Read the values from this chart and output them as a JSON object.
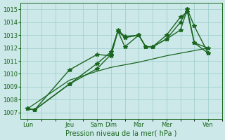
{
  "background_color": "#cce8e8",
  "grid_color": "#99cccc",
  "line_color": "#1a6620",
  "xlabel": "Pression niveau de la mer( hPa )",
  "ylim": [
    1006.5,
    1015.5
  ],
  "yticks": [
    1007,
    1008,
    1009,
    1010,
    1011,
    1012,
    1013,
    1014,
    1015
  ],
  "x_tick_labels": [
    "Lun",
    "Jeu",
    "Sam",
    "Dim",
    "Mar",
    "Mer",
    "Ven"
  ],
  "x_tick_positions": [
    0,
    3,
    5,
    6,
    8,
    10,
    13
  ],
  "xlim": [
    -0.5,
    14.0
  ],
  "lines": [
    {
      "x": [
        0,
        0.5,
        3,
        5,
        6,
        6.5,
        7,
        8,
        8.5,
        9,
        10,
        11,
        11.5,
        12,
        13
      ],
      "y": [
        1007.3,
        1007.2,
        1009.2,
        1010.4,
        1011.5,
        1013.4,
        1012.9,
        1013.0,
        1012.1,
        1012.1,
        1012.7,
        1014.0,
        1015.0,
        1013.7,
        1011.6
      ],
      "marker": "*",
      "markersize": 4,
      "linewidth": 1.0
    },
    {
      "x": [
        0,
        0.5,
        3,
        5,
        6,
        6.5,
        7,
        8,
        8.5,
        9,
        10,
        11,
        11.5,
        12,
        13
      ],
      "y": [
        1007.3,
        1007.2,
        1010.3,
        1011.5,
        1011.4,
        1013.3,
        1012.8,
        1013.0,
        1012.1,
        1012.1,
        1013.0,
        1014.4,
        1014.8,
        1012.4,
        1012.0
      ],
      "marker": "*",
      "markersize": 4,
      "linewidth": 1.0
    },
    {
      "x": [
        0,
        0.5,
        3,
        5,
        6,
        6.5,
        7,
        8,
        8.5,
        9,
        10,
        11,
        11.5,
        12,
        13
      ],
      "y": [
        1007.3,
        1007.2,
        1009.2,
        1010.8,
        1011.7,
        1013.3,
        1012.1,
        1013.0,
        1012.1,
        1012.1,
        1012.7,
        1013.4,
        1015.0,
        1012.4,
        1011.6
      ],
      "marker": "*",
      "markersize": 4,
      "linewidth": 1.0
    },
    {
      "x": [
        0,
        3,
        5,
        6,
        8,
        10,
        13
      ],
      "y": [
        1007.3,
        1009.5,
        1010.2,
        1010.5,
        1010.9,
        1011.4,
        1012.0
      ],
      "marker": null,
      "markersize": 0,
      "linewidth": 0.9,
      "linestyle": "-"
    }
  ]
}
